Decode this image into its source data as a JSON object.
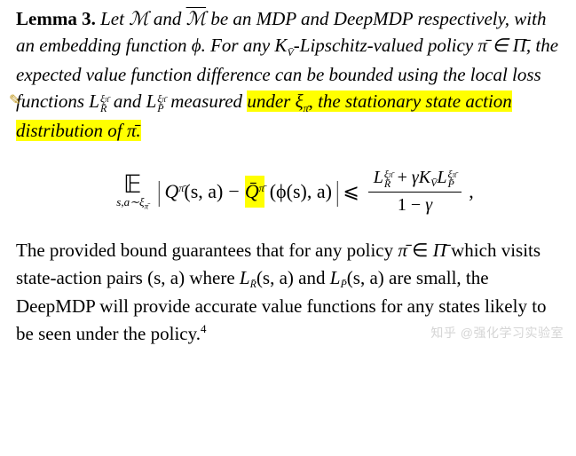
{
  "highlight_color": "#ffff00",
  "background_color": "#ffffff",
  "text_color": "#000000",
  "font_family": "Times New Roman",
  "lemma": {
    "head": "Lemma 3.",
    "seg1": " Let ",
    "M": "M",
    "seg2": " and ",
    "Mbar": "M",
    "seg3": " be an MDP and DeepMDP respectively, with an embedding function ",
    "phi": "ϕ",
    "seg4": ". For any ",
    "Ksub": "K",
    "Ksub_sub": "V̄",
    "seg5": "-Lipschitz-valued policy ",
    "pi": "π̄",
    "seg6": " ∈ ",
    "Pi": "Π̄",
    "seg7": ", the expected value function difference can be bounded using the local loss functions ",
    "LR": "L",
    "LR_sup": "ξ",
    "LR_sup2": "π̄",
    "LR_sub": "R̄",
    "seg8": " and ",
    "LP": "L",
    "LP_sup": "ξ",
    "LP_sup2": "π̄",
    "LP_sub": "P̄",
    "seg9": " measured ",
    "hi1": "under ",
    "hi_xi": "ξ",
    "hi_xi_sub": "π̄",
    "hi2": ", the stationary state action",
    "hi3": "distribution of ",
    "hi_pi": "π̄",
    "hi4": "."
  },
  "equation": {
    "Esym": "𝔼",
    "Esub_a": "s,a",
    "Esub_b": "∼ξ",
    "Esub_c": "π̄",
    "Q1": "Q",
    "Q1_sup": "π̄",
    "args1": "(s, a)",
    "minus": " − ",
    "Q2": "Q̄",
    "Q2_sup": "π̄",
    "args2": "(ϕ(s), a)",
    "leq": " ⩽ ",
    "num_L1": "L",
    "num_L1_sup": "ξ",
    "num_L1_sup2": "π̄",
    "num_L1_sub": "R̄",
    "num_plus": " + ",
    "num_gamma": "γ",
    "num_K": "K",
    "num_K_sub": "V̄",
    "num_L2": "L",
    "num_L2_sup": "ξ",
    "num_L2_sup2": "π̄",
    "num_L2_sub": "P̄",
    "den_a": "1 − ",
    "den_gamma": "γ",
    "tail": ","
  },
  "para": {
    "t1": "The provided bound guarantees that for any policy ",
    "pi": "π̄",
    "t2": " ∈ ",
    "Pi": "Π̄",
    "t3": " which visits state-action pairs ",
    "pair": "(s, a)",
    "t4": " where ",
    "LR": "L",
    "LR_sub": "R̄",
    "LR_args": "(s, a)",
    "t5": " and ",
    "LP": "L",
    "LP_sub": "P̄",
    "LP_args": "(s, a)",
    "t6": " are small, the DeepMDP will provide accurate value functions for any states likely to be seen under the policy.",
    "foot": "4"
  },
  "marker_glyph": "✎",
  "watermark": "知乎 @强化学习实验室"
}
